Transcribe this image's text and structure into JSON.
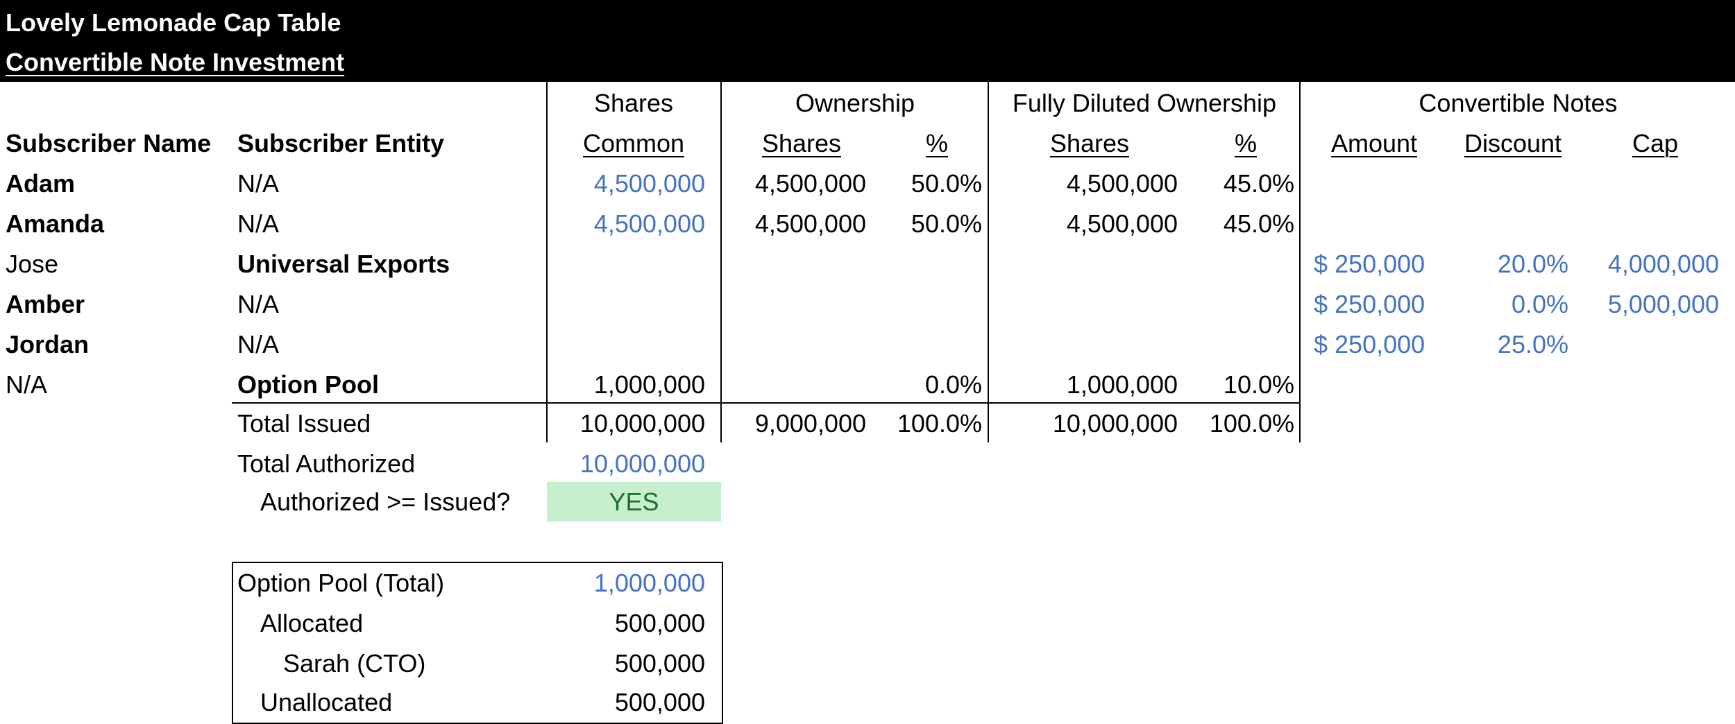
{
  "header": {
    "title": "Lovely Lemonade Cap Table",
    "subtitle": "Convertible Note Investment"
  },
  "group_headers": {
    "shares": "Shares",
    "ownership": "Ownership",
    "fully_diluted": "Fully Diluted Ownership",
    "convertible_notes": "Convertible Notes"
  },
  "columns": {
    "subscriber_name": "Subscriber Name",
    "subscriber_entity": "Subscriber Entity",
    "common": "Common",
    "own_shares": "Shares",
    "own_pct": "%",
    "fd_shares": "Shares",
    "fd_pct": "%",
    "amount": "Amount",
    "discount": "Discount",
    "cap": "Cap"
  },
  "rows": [
    {
      "name": "Adam",
      "entity": "N/A",
      "common": "4,500,000",
      "own_shares": "4,500,000",
      "own_pct": "50.0%",
      "fd_shares": "4,500,000",
      "fd_pct": "45.0%",
      "amount": "",
      "discount": "",
      "cap": ""
    },
    {
      "name": "Amanda",
      "entity": "N/A",
      "common": "4,500,000",
      "own_shares": "4,500,000",
      "own_pct": "50.0%",
      "fd_shares": "4,500,000",
      "fd_pct": "45.0%",
      "amount": "",
      "discount": "",
      "cap": ""
    },
    {
      "name": "Jose",
      "entity": "Universal Exports",
      "common": "",
      "own_shares": "",
      "own_pct": "",
      "fd_shares": "",
      "fd_pct": "",
      "amount": "$ 250,000",
      "discount": "20.0%",
      "cap": "4,000,000"
    },
    {
      "name": "Amber",
      "entity": "N/A",
      "common": "",
      "own_shares": "",
      "own_pct": "",
      "fd_shares": "",
      "fd_pct": "",
      "amount": "$ 250,000",
      "discount": "0.0%",
      "cap": "5,000,000"
    },
    {
      "name": "Jordan",
      "entity": "N/A",
      "common": "",
      "own_shares": "",
      "own_pct": "",
      "fd_shares": "",
      "fd_pct": "",
      "amount": "$ 250,000",
      "discount": "25.0%",
      "cap": ""
    },
    {
      "name": "N/A",
      "entity": "Option Pool",
      "common": "1,000,000",
      "own_shares": "",
      "own_pct": "0.0%",
      "fd_shares": "1,000,000",
      "fd_pct": "10.0%",
      "amount": "",
      "discount": "",
      "cap": ""
    }
  ],
  "totals": {
    "label": "Total Issued",
    "common": "10,000,000",
    "own_shares": "9,000,000",
    "own_pct": "100.0%",
    "fd_shares": "10,000,000",
    "fd_pct": "100.0%"
  },
  "authorized": {
    "label": "Total Authorized",
    "value": "10,000,000",
    "check_label": "Authorized >= Issued?",
    "check_value": "YES"
  },
  "option_pool": {
    "total_label": "Option Pool (Total)",
    "total_value": "1,000,000",
    "allocated_label": "Allocated",
    "allocated_value": "500,000",
    "sarah_label": "Sarah (CTO)",
    "sarah_value": "500,000",
    "unallocated_label": "Unallocated",
    "unallocated_value": "500,000"
  },
  "colors": {
    "header_bg": "#000000",
    "input_blue": "#4472c4",
    "check_ok_bg": "#c6efce",
    "check_ok_text": "#1f6e2a"
  }
}
